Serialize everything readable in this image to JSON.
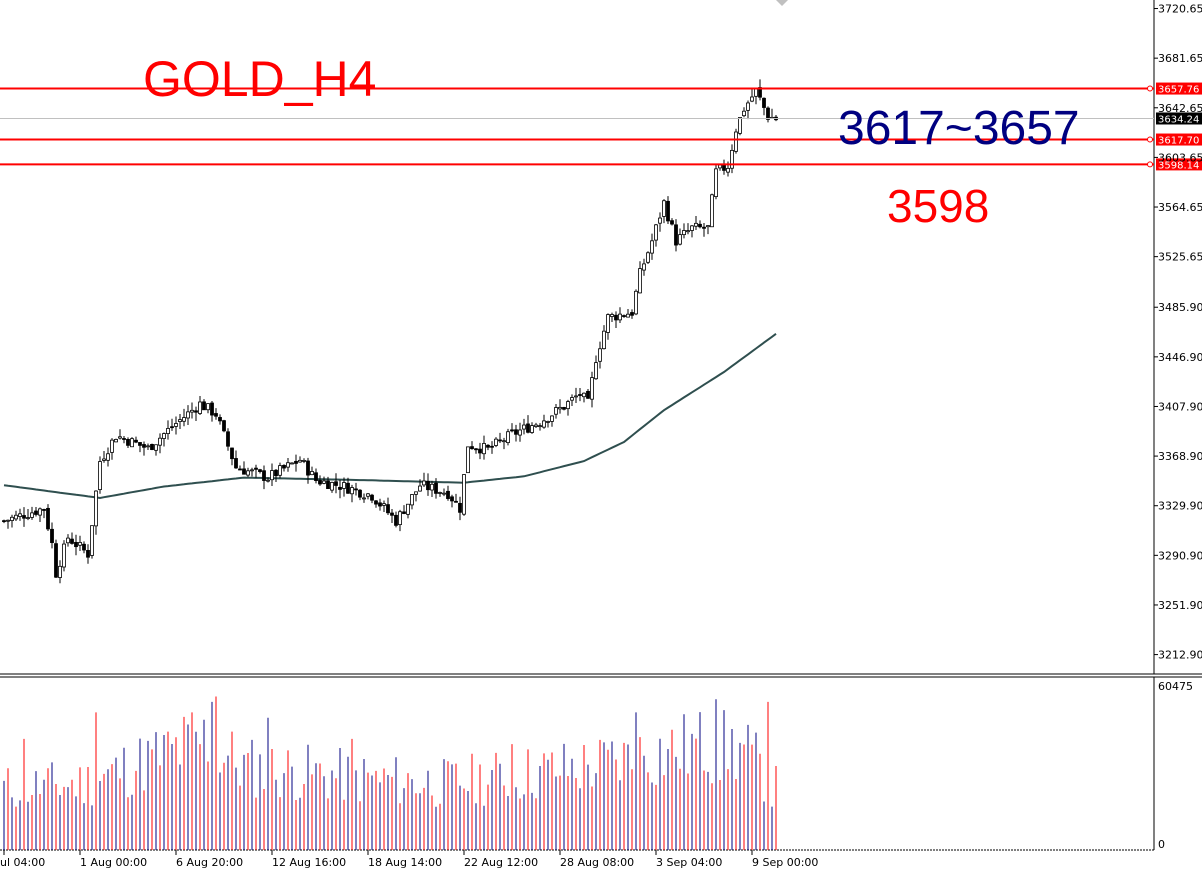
{
  "chart_data": [
    {
      "type": "candlestick",
      "title": "GOLD_H4",
      "colors": {
        "candle": "#000000",
        "moving_average": "#2f4f4f",
        "level_line": "#ff0000",
        "current_price_line": "#c0c0c0",
        "range_annotation": "#000080",
        "level_annotation": "#ff0000"
      },
      "price_scale": {
        "ylim": [
          3200,
          3725
        ],
        "ticks": [
          "3720.65",
          "3681.65",
          "3642.65",
          "3603.65",
          "3564.65",
          "3525.65",
          "3485.90",
          "3446.90",
          "3407.90",
          "3368.90",
          "3329.90",
          "3290.90",
          "3251.90",
          "3212.90"
        ],
        "tick_values": [
          3720.65,
          3681.65,
          3642.65,
          3603.65,
          3564.65,
          3525.65,
          3485.9,
          3446.9,
          3407.9,
          3368.9,
          3329.9,
          3290.9,
          3251.9,
          3212.9
        ]
      },
      "time_axis": {
        "labels": [
          "ul 04:00",
          "1 Aug 00:00",
          "6 Aug 20:00",
          "12 Aug 16:00",
          "18 Aug 14:00",
          "22 Aug 12:00",
          "28 Aug 08:00",
          "3 Sep 04:00",
          "9 Sep 00:00"
        ],
        "label_bar_index": [
          0,
          19,
          43,
          67,
          91,
          115,
          139,
          163,
          187
        ]
      },
      "horizontal_levels": [
        {
          "price": 3657.76,
          "label": "3657.76"
        },
        {
          "price": 3617.7,
          "label": "3617.70"
        },
        {
          "price": 3598.14,
          "label": "3598.14"
        }
      ],
      "current_price": {
        "price": 3634.24,
        "label": "3634.24"
      },
      "annotations": {
        "range_text": "3617~3657",
        "level_text": "3598"
      },
      "ohlc_anchors": {
        "close_keypoints": [
          [
            0,
            3318
          ],
          [
            10,
            3328
          ],
          [
            12,
            3300
          ],
          [
            13,
            3277
          ],
          [
            16,
            3305
          ],
          [
            21,
            3292
          ],
          [
            24,
            3365
          ],
          [
            28,
            3385
          ],
          [
            36,
            3375
          ],
          [
            42,
            3392
          ],
          [
            49,
            3410
          ],
          [
            53,
            3402
          ],
          [
            58,
            3360
          ],
          [
            66,
            3352
          ],
          [
            74,
            3366
          ],
          [
            78,
            3350
          ],
          [
            85,
            3345
          ],
          [
            92,
            3338
          ],
          [
            98,
            3318
          ],
          [
            104,
            3346
          ],
          [
            111,
            3340
          ],
          [
            114,
            3328
          ],
          [
            116,
            3378
          ],
          [
            121,
            3374
          ],
          [
            127,
            3386
          ],
          [
            134,
            3396
          ],
          [
            140,
            3408
          ],
          [
            144,
            3418
          ],
          [
            146,
            3410
          ],
          [
            148,
            3446
          ],
          [
            151,
            3478
          ],
          [
            157,
            3482
          ],
          [
            159,
            3512
          ],
          [
            162,
            3538
          ],
          [
            165,
            3568
          ],
          [
            168,
            3538
          ],
          [
            172,
            3548
          ],
          [
            176,
            3548
          ],
          [
            178,
            3592
          ],
          [
            181,
            3597
          ],
          [
            183,
            3626
          ],
          [
            185,
            3642
          ],
          [
            188,
            3656
          ],
          [
            191,
            3636
          ],
          [
            193,
            3634
          ]
        ],
        "seed": 7
      },
      "moving_average": {
        "keypoints": [
          [
            0,
            3346
          ],
          [
            24,
            3336
          ],
          [
            40,
            3345
          ],
          [
            60,
            3352
          ],
          [
            90,
            3350
          ],
          [
            115,
            3348
          ],
          [
            130,
            3353
          ],
          [
            145,
            3365
          ],
          [
            155,
            3380
          ],
          [
            165,
            3405
          ],
          [
            180,
            3435
          ],
          [
            193,
            3465
          ]
        ]
      },
      "bar_count": 194
    },
    {
      "type": "bar",
      "title": "",
      "ylim": [
        0,
        60475
      ],
      "ticks": [
        "60475",
        "0"
      ],
      "tick_values": [
        60475,
        0
      ],
      "colors": {
        "up": "#000080",
        "down": "#ff0000"
      },
      "description_of_values": "volume per bar, aligned with candles",
      "value_keypoints": [
        [
          0,
          26000
        ],
        [
          20,
          28000
        ],
        [
          40,
          40000
        ],
        [
          50,
          46000
        ],
        [
          60,
          35000
        ],
        [
          90,
          30000
        ],
        [
          110,
          28000
        ],
        [
          130,
          32000
        ],
        [
          150,
          36000
        ],
        [
          160,
          40000
        ],
        [
          175,
          44000
        ],
        [
          185,
          42000
        ],
        [
          193,
          26000
        ]
      ],
      "peak_bars": [
        [
          5,
          42000
        ],
        [
          23,
          52000
        ],
        [
          47,
          52000
        ],
        [
          52,
          56000
        ],
        [
          53,
          58000
        ],
        [
          66,
          50000
        ],
        [
          87,
          42000
        ],
        [
          127,
          40000
        ],
        [
          158,
          52000
        ],
        [
          178,
          57000
        ],
        [
          191,
          56000
        ]
      ]
    }
  ]
}
